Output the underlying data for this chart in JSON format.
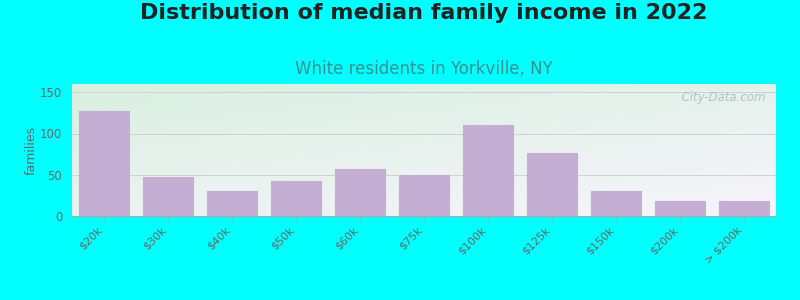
{
  "title": "Distribution of median family income in 2022",
  "subtitle": "White residents in Yorkville, NY",
  "ylabel": "families",
  "categories": [
    "$20k",
    "$30k",
    "$40k",
    "$50k",
    "$60k",
    "$75k",
    "$100k",
    "$125k",
    "$150k",
    "$200k",
    "> $200k"
  ],
  "values": [
    127,
    47,
    30,
    42,
    57,
    50,
    110,
    76,
    30,
    18,
    18
  ],
  "bar_color": "#c4aed4",
  "bar_edge_color": "#c4aed4",
  "ylim": [
    0,
    160
  ],
  "yticks": [
    0,
    50,
    100,
    150
  ],
  "background_outer": "#00ffff",
  "bg_grad_top_left": "#d8f0e0",
  "bg_grad_bottom_right": "#f8f4fc",
  "title_fontsize": 16,
  "subtitle_fontsize": 12,
  "subtitle_color": "#3a9090",
  "ylabel_fontsize": 9,
  "watermark_text": "  City-Data.com",
  "watermark_color": "#aab8c2",
  "tick_color": "#666666",
  "spine_color": "#aaaaaa"
}
